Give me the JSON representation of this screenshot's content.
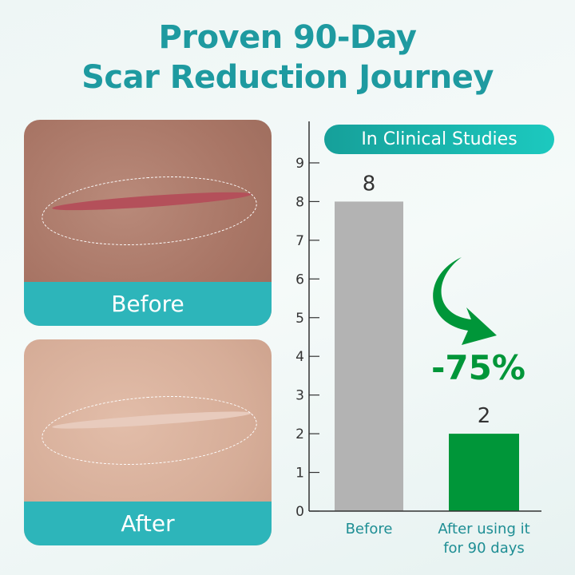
{
  "title_line1": "Proven 90-Day",
  "title_line2": "Scar Reduction Journey",
  "panels": {
    "before_label": "Before",
    "after_label": "After"
  },
  "badge": "In Clinical Studies",
  "reduction_label": "-75%",
  "colors": {
    "teal": "#2db5ba",
    "green": "#009639",
    "gray": "#b3b3b3",
    "title": "#1e9aa0"
  },
  "chart_data": {
    "type": "bar",
    "categories": [
      "Before",
      "After using it for 90 days"
    ],
    "category_lines": [
      [
        "Before"
      ],
      [
        "After using it",
        "for 90 days"
      ]
    ],
    "values": [
      8,
      2
    ],
    "data_labels": [
      "8",
      "2"
    ],
    "bar_colors": [
      "#b3b3b3",
      "#009639"
    ],
    "ylim": [
      0,
      9.9
    ],
    "yticks": [
      0,
      1,
      2,
      3,
      4,
      5,
      6,
      7,
      8,
      9
    ],
    "grid": false
  }
}
